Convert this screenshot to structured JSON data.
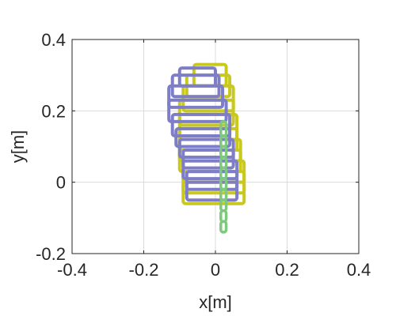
{
  "chart_data": {
    "type": "line",
    "title": "",
    "xlabel": "x[m]",
    "ylabel": "y[m]",
    "xlim": [
      -0.4,
      0.4
    ],
    "ylim": [
      -0.2,
      0.4
    ],
    "xticks": [
      -0.4,
      -0.2,
      0,
      0.2,
      0.4
    ],
    "yticks": [
      -0.2,
      0,
      0.2,
      0.4
    ],
    "xtick_labels": [
      "-0.4",
      "-0.2",
      "0",
      "0.2",
      "0.4"
    ],
    "ytick_labels": [
      "-0.2",
      "0",
      "0.2",
      "0.4"
    ],
    "grid": true,
    "legend": "none",
    "series": [
      {
        "color": "#c8c81e",
        "rectangles": [
          {
            "x0": -0.09,
            "x1": 0.08,
            "y0": -0.06,
            "y1": 0.0
          },
          {
            "x0": -0.09,
            "x1": 0.08,
            "y0": -0.03,
            "y1": 0.03
          },
          {
            "x0": -0.09,
            "x1": 0.08,
            "y0": 0.0,
            "y1": 0.06
          },
          {
            "x0": -0.1,
            "x1": 0.07,
            "y0": 0.03,
            "y1": 0.09
          },
          {
            "x0": -0.1,
            "x1": 0.07,
            "y0": 0.06,
            "y1": 0.12
          },
          {
            "x0": -0.1,
            "x1": 0.06,
            "y0": 0.09,
            "y1": 0.15
          },
          {
            "x0": -0.1,
            "x1": 0.06,
            "y0": 0.12,
            "y1": 0.19
          },
          {
            "x0": -0.1,
            "x1": 0.05,
            "y0": 0.16,
            "y1": 0.23
          },
          {
            "x0": -0.09,
            "x1": 0.05,
            "y0": 0.2,
            "y1": 0.27
          },
          {
            "x0": -0.08,
            "x1": 0.04,
            "y0": 0.24,
            "y1": 0.3
          },
          {
            "x0": -0.06,
            "x1": 0.03,
            "y0": 0.27,
            "y1": 0.33
          }
        ]
      },
      {
        "color": "#7e7ec8",
        "rectangles": [
          {
            "x0": -0.08,
            "x1": 0.06,
            "y0": -0.05,
            "y1": 0.0
          },
          {
            "x0": -0.08,
            "x1": 0.06,
            "y0": -0.02,
            "y1": 0.03
          },
          {
            "x0": -0.09,
            "x1": 0.06,
            "y0": 0.01,
            "y1": 0.06
          },
          {
            "x0": -0.09,
            "x1": 0.05,
            "y0": 0.04,
            "y1": 0.09
          },
          {
            "x0": -0.1,
            "x1": 0.05,
            "y0": 0.07,
            "y1": 0.12
          },
          {
            "x0": -0.11,
            "x1": 0.04,
            "y0": 0.1,
            "y1": 0.15
          },
          {
            "x0": -0.12,
            "x1": 0.04,
            "y0": 0.13,
            "y1": 0.19
          },
          {
            "x0": -0.13,
            "x1": 0.03,
            "y0": 0.17,
            "y1": 0.23
          },
          {
            "x0": -0.13,
            "x1": 0.02,
            "y0": 0.21,
            "y1": 0.27
          },
          {
            "x0": -0.12,
            "x1": 0.01,
            "y0": 0.24,
            "y1": 0.3
          },
          {
            "x0": -0.1,
            "x1": 0.0,
            "y0": 0.27,
            "y1": 0.32
          }
        ]
      },
      {
        "color": "#7fc97f",
        "rectangles": [
          {
            "x0": 0.015,
            "x1": 0.03,
            "y0": -0.14,
            "y1": -0.11
          },
          {
            "x0": 0.015,
            "x1": 0.03,
            "y0": -0.11,
            "y1": -0.08
          },
          {
            "x0": 0.015,
            "x1": 0.03,
            "y0": -0.08,
            "y1": -0.05
          },
          {
            "x0": 0.015,
            "x1": 0.03,
            "y0": -0.05,
            "y1": -0.02
          },
          {
            "x0": 0.015,
            "x1": 0.03,
            "y0": -0.02,
            "y1": 0.01
          },
          {
            "x0": 0.015,
            "x1": 0.03,
            "y0": 0.01,
            "y1": 0.04
          },
          {
            "x0": 0.015,
            "x1": 0.03,
            "y0": 0.04,
            "y1": 0.07
          },
          {
            "x0": 0.015,
            "x1": 0.03,
            "y0": 0.07,
            "y1": 0.1
          },
          {
            "x0": 0.015,
            "x1": 0.03,
            "y0": 0.1,
            "y1": 0.13
          },
          {
            "x0": 0.015,
            "x1": 0.03,
            "y0": 0.13,
            "y1": 0.17
          }
        ]
      }
    ]
  }
}
